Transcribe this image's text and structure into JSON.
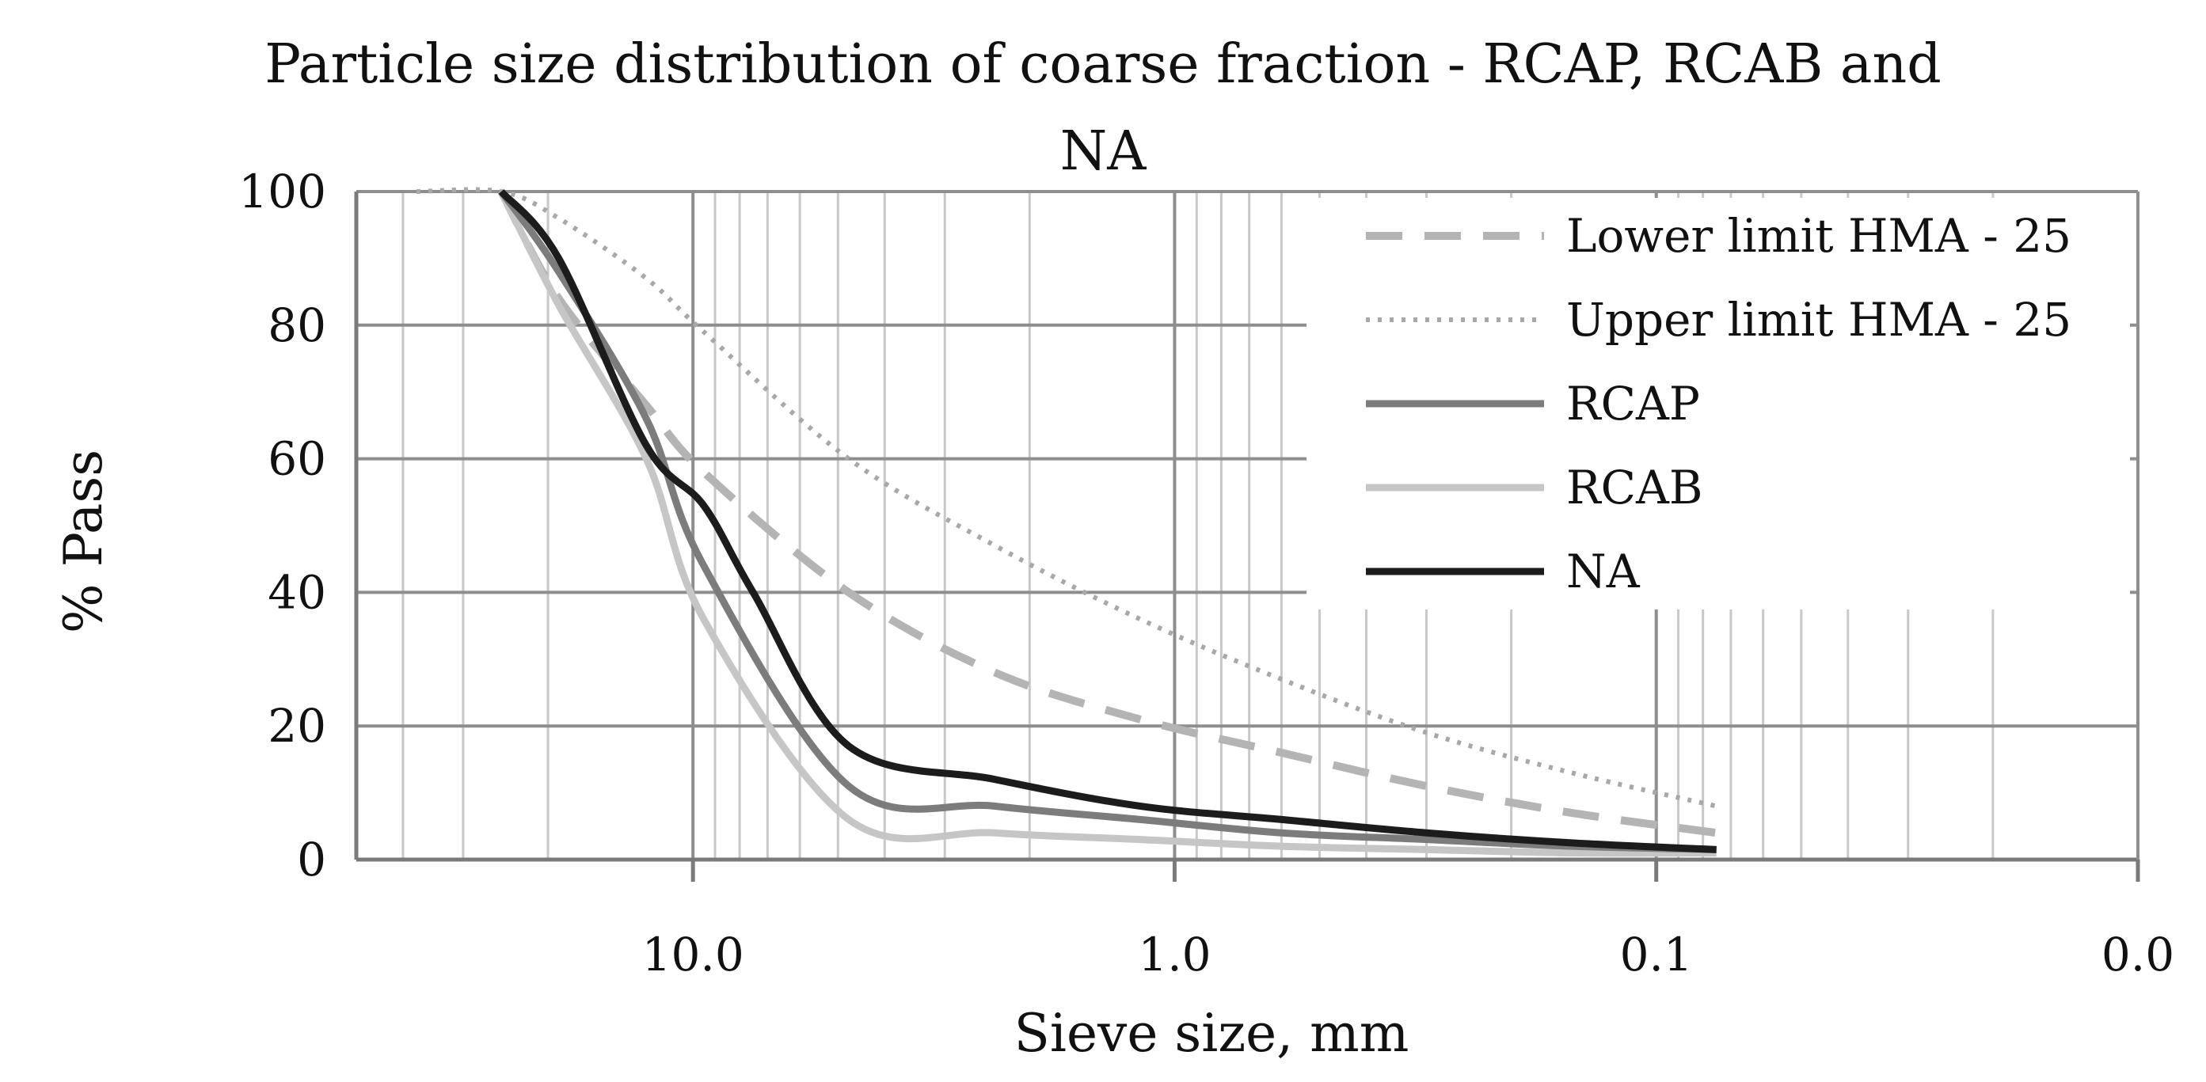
{
  "chart_data": {
    "type": "line",
    "title_lines": [
      "Particle size distribution of coarse fraction - RCAP, RCAB and",
      "NA"
    ],
    "xlabel": "Sieve size, mm",
    "ylabel": "% Pass",
    "x_scale": "log",
    "x_reversed": true,
    "xlim": [
      50,
      0.01
    ],
    "ylim": [
      0,
      100
    ],
    "x_ticks": [
      10,
      1,
      0.1,
      0.01
    ],
    "x_tick_labels": [
      "10.0",
      "1.0",
      "0.1",
      "0.0"
    ],
    "y_ticks": [
      0,
      20,
      40,
      60,
      80,
      100
    ],
    "y_tick_labels": [
      "0",
      "20",
      "40",
      "60",
      "80",
      "100"
    ],
    "grid": true,
    "legend_position": "top-right",
    "series": [
      {
        "name": "Lower limit HMA - 25",
        "style": "dashed",
        "color": "#b4b4b4",
        "x": [
          25,
          19,
          12.5,
          9.5,
          4.75,
          2.36,
          1.18,
          0.6,
          0.3,
          0.15,
          0.075
        ],
        "y": [
          100,
          84,
          68,
          58,
          40,
          28,
          21,
          16,
          11,
          7,
          4
        ]
      },
      {
        "name": "Upper limit HMA - 25",
        "style": "dotted",
        "color": "#a8a8a8",
        "x": [
          37.5,
          25,
          19,
          12.5,
          9.5,
          4.75,
          2.36,
          1.18,
          0.6,
          0.3,
          0.15,
          0.075
        ],
        "y": [
          100,
          100,
          96,
          87,
          79,
          60,
          47,
          36,
          27,
          19,
          13,
          8
        ]
      },
      {
        "name": "RCAP",
        "style": "solid",
        "color": "#7c7c7c",
        "x": [
          25,
          19,
          12.5,
          9.5,
          4.75,
          2.36,
          1.18,
          0.6,
          0.3,
          0.15,
          0.075
        ],
        "y": [
          100,
          88,
          66,
          44,
          11,
          8,
          6,
          4,
          3,
          2,
          1.5
        ]
      },
      {
        "name": "RCAB",
        "style": "solid",
        "color": "#c6c6c6",
        "x": [
          25,
          19,
          12.5,
          9.5,
          4.75,
          2.36,
          1.18,
          0.6,
          0.3,
          0.15,
          0.075
        ],
        "y": [
          100,
          83,
          60,
          36,
          6,
          4,
          3,
          2,
          1.5,
          1,
          1
        ]
      },
      {
        "name": "NA",
        "style": "solid",
        "color": "#1c1c1c",
        "x": [
          25,
          19,
          12.5,
          9.5,
          7.5,
          4.75,
          2.36,
          1.18,
          0.6,
          0.3,
          0.15,
          0.075
        ],
        "y": [
          100,
          90,
          62,
          53,
          40,
          17,
          12,
          8,
          6,
          4,
          2.5,
          1.5
        ]
      }
    ]
  }
}
